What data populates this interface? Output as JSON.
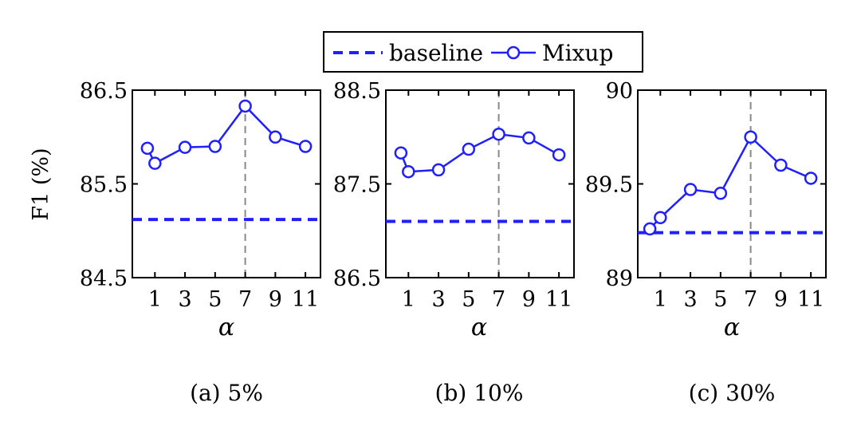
{
  "chart_data": {
    "type": "line",
    "legend": {
      "placement": "top-center",
      "entries": [
        {
          "label": "baseline",
          "color": "#1f1fff",
          "style": "dashed"
        },
        {
          "label": "Mixup",
          "color": "#1f1fff",
          "style": "line-circle-marker"
        }
      ]
    },
    "ylabel": "F1 (%)",
    "xlabel": "α",
    "xticks": [
      1,
      3,
      5,
      7,
      9,
      11
    ],
    "xlim": [
      -0.5,
      12
    ],
    "reference_x": 7,
    "panels": [
      {
        "caption": "(a) 5%",
        "ylim": [
          84.5,
          86.5
        ],
        "yticks": [
          "84.5",
          "85.5",
          "86.5"
        ],
        "baseline": 85.12,
        "mixup": {
          "x": [
            0.5,
            1,
            3,
            5,
            7,
            9,
            11
          ],
          "y": [
            85.88,
            85.72,
            85.89,
            85.9,
            86.33,
            86.0,
            85.9
          ]
        }
      },
      {
        "caption": "(b) 10%",
        "ylim": [
          86.5,
          88.5
        ],
        "yticks": [
          "86.5",
          "87.5",
          "88.5"
        ],
        "baseline": 87.1,
        "mixup": {
          "x": [
            0.5,
            1,
            3,
            5,
            7,
            9,
            11
          ],
          "y": [
            87.83,
            87.63,
            87.65,
            87.87,
            88.03,
            87.99,
            87.81
          ]
        }
      },
      {
        "caption": "(c) 30%",
        "ylim": [
          89,
          90
        ],
        "yticks": [
          "89",
          "89.5",
          "90"
        ],
        "baseline": 89.24,
        "mixup": {
          "x": [
            0.3,
            1,
            3,
            5,
            7,
            9,
            11
          ],
          "y": [
            89.26,
            89.32,
            89.47,
            89.45,
            89.75,
            89.6,
            89.53
          ]
        }
      }
    ]
  }
}
